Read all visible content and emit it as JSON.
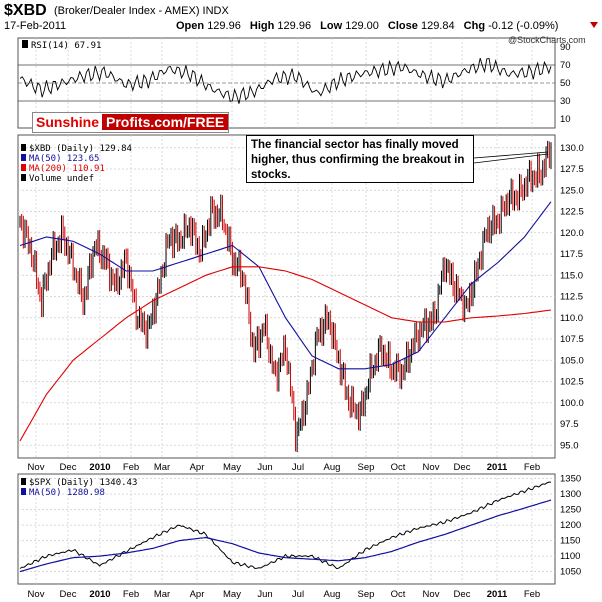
{
  "header": {
    "symbol": "$XBD",
    "description": "(Broker/Dealer Index - AMEX) INDX",
    "date": "17-Feb-2011",
    "open_label": "Open",
    "open": "129.96",
    "high_label": "High",
    "high": "129.96",
    "low_label": "Low",
    "low": "129.00",
    "close_label": "Close",
    "close": "129.84",
    "chg_label": "Chg",
    "chg": "-0.12 (-0.09%)",
    "credit": "@StockCharts.com"
  },
  "branding": {
    "part1": "Sunshine",
    "part2": "Profits.com/FREE"
  },
  "annotation": {
    "text_lines": [
      "The financial sector has finally moved",
      "higher, thus confirming the breakout in",
      "stocks."
    ]
  },
  "colors": {
    "price_up": "#000000",
    "price_down": "#cc0000",
    "ma50": "#1010a0",
    "ma200": "#e00000",
    "spx": "#000000",
    "spx_ma": "#1010a0",
    "grid": "#cccccc"
  },
  "chart_data": [
    {
      "type": "line",
      "panel": "rsi",
      "legend": "RSI(14) 67.91",
      "ylim": [
        0,
        100
      ],
      "yticks": [
        10,
        30,
        50,
        70,
        90
      ],
      "reference_lines": [
        30,
        50,
        70
      ],
      "x": [
        0,
        0.04,
        0.08,
        0.12,
        0.16,
        0.2,
        0.24,
        0.28,
        0.32,
        0.36,
        0.4,
        0.44,
        0.48,
        0.52,
        0.56,
        0.6,
        0.64,
        0.68,
        0.72,
        0.76,
        0.8,
        0.84,
        0.88,
        0.92,
        0.96,
        1.0
      ],
      "values": [
        55,
        42,
        50,
        58,
        62,
        48,
        52,
        66,
        60,
        44,
        34,
        40,
        55,
        58,
        38,
        52,
        60,
        64,
        68,
        58,
        52,
        64,
        72,
        60,
        62,
        67.91
      ]
    },
    {
      "type": "bar",
      "panel": "price",
      "series_label": "$XBD (Daily) 129.84",
      "ylim": [
        93.5,
        131.5
      ],
      "yticks": [
        95.0,
        97.5,
        100.0,
        102.5,
        105.0,
        107.5,
        110.0,
        112.5,
        115.0,
        117.5,
        120.0,
        122.5,
        125.0,
        127.5,
        130.0
      ],
      "categories": [
        "Nov",
        "Dec",
        "2010",
        "Feb",
        "Mar",
        "Apr",
        "May",
        "Jun",
        "Jul",
        "Aug",
        "Sep",
        "Oct",
        "Nov",
        "Dec",
        "2011",
        "Feb"
      ],
      "series": [
        {
          "name": "$XBD (Daily) 129.84",
          "x": [
            0,
            0.02,
            0.04,
            0.06,
            0.08,
            0.1,
            0.12,
            0.14,
            0.16,
            0.18,
            0.2,
            0.22,
            0.24,
            0.26,
            0.28,
            0.3,
            0.32,
            0.34,
            0.36,
            0.38,
            0.4,
            0.42,
            0.44,
            0.46,
            0.48,
            0.5,
            0.52,
            0.54,
            0.56,
            0.58,
            0.6,
            0.62,
            0.64,
            0.66,
            0.68,
            0.7,
            0.72,
            0.74,
            0.76,
            0.78,
            0.8,
            0.82,
            0.84,
            0.86,
            0.88,
            0.9,
            0.92,
            0.94,
            0.96,
            0.98,
            1.0
          ],
          "values": [
            121.5,
            118.0,
            112.0,
            117.5,
            120.0,
            116.0,
            112.0,
            118.5,
            117.0,
            113.5,
            117.0,
            110.0,
            108.5,
            113.0,
            119.5,
            119.0,
            121.0,
            117.5,
            122.5,
            122.0,
            117.0,
            115.0,
            106.0,
            109.0,
            103.0,
            106.5,
            96.0,
            100.5,
            108.0,
            110.0,
            105.0,
            100.0,
            98.5,
            103.5,
            106.5,
            104.0,
            103.5,
            107.0,
            109.0,
            110.0,
            116.5,
            113.5,
            111.0,
            115.5,
            120.5,
            121.5,
            124.0,
            124.5,
            126.5,
            127.0,
            129.84
          ]
        },
        {
          "name": "MA(50) 123.65",
          "x": [
            0,
            0.05,
            0.1,
            0.15,
            0.2,
            0.25,
            0.3,
            0.35,
            0.4,
            0.45,
            0.5,
            0.55,
            0.6,
            0.65,
            0.7,
            0.75,
            0.8,
            0.85,
            0.9,
            0.95,
            1.0
          ],
          "values": [
            118.5,
            119.5,
            119.0,
            117.5,
            115.5,
            115.5,
            116.5,
            117.5,
            118.5,
            116.0,
            110.0,
            105.5,
            104.0,
            104.0,
            104.5,
            106.0,
            110.0,
            114.0,
            116.5,
            119.5,
            123.65
          ]
        },
        {
          "name": "MA(200) 110.91",
          "x": [
            0,
            0.05,
            0.1,
            0.15,
            0.2,
            0.25,
            0.3,
            0.35,
            0.4,
            0.45,
            0.5,
            0.55,
            0.6,
            0.65,
            0.7,
            0.75,
            0.8,
            0.85,
            0.9,
            0.95,
            1.0
          ],
          "values": [
            95.5,
            101.0,
            105.0,
            107.5,
            110.0,
            112.0,
            113.5,
            115.0,
            116.0,
            116.0,
            115.5,
            114.5,
            113.0,
            111.5,
            110.0,
            109.5,
            109.5,
            110.0,
            110.2,
            110.5,
            110.91
          ]
        }
      ],
      "legend_items": [
        "$XBD (Daily) 129.84",
        "MA(50) 123.65",
        "MA(200) 110.91",
        "Volume undef"
      ]
    },
    {
      "type": "line",
      "panel": "spx",
      "ylim": [
        1010,
        1365
      ],
      "yticks": [
        1050,
        1100,
        1150,
        1200,
        1250,
        1300,
        1350
      ],
      "categories": [
        "Nov",
        "Dec",
        "2010",
        "Feb",
        "Mar",
        "Apr",
        "May",
        "Jun",
        "Jul",
        "Aug",
        "Sep",
        "Oct",
        "Nov",
        "Dec",
        "2011",
        "Feb"
      ],
      "series": [
        {
          "name": "$SPX (Daily) 1340.43",
          "x": [
            0,
            0.05,
            0.1,
            0.15,
            0.2,
            0.25,
            0.3,
            0.35,
            0.4,
            0.45,
            0.5,
            0.55,
            0.6,
            0.65,
            0.7,
            0.75,
            0.8,
            0.85,
            0.9,
            0.95,
            1.0
          ],
          "values": [
            1060,
            1100,
            1120,
            1070,
            1115,
            1160,
            1200,
            1170,
            1080,
            1060,
            1100,
            1100,
            1060,
            1120,
            1160,
            1190,
            1210,
            1240,
            1280,
            1310,
            1340.43
          ]
        },
        {
          "name": "MA(50) 1280.98",
          "x": [
            0,
            0.05,
            0.1,
            0.15,
            0.2,
            0.25,
            0.3,
            0.35,
            0.4,
            0.45,
            0.5,
            0.55,
            0.6,
            0.65,
            0.7,
            0.75,
            0.8,
            0.85,
            0.9,
            0.95,
            1.0
          ],
          "values": [
            1050,
            1075,
            1095,
            1100,
            1110,
            1125,
            1150,
            1160,
            1140,
            1110,
            1095,
            1090,
            1085,
            1095,
            1115,
            1145,
            1170,
            1200,
            1230,
            1255,
            1280.98
          ]
        }
      ],
      "legend_items": [
        "$SPX (Daily) 1340.43",
        "MA(50) 1280.98"
      ]
    }
  ]
}
